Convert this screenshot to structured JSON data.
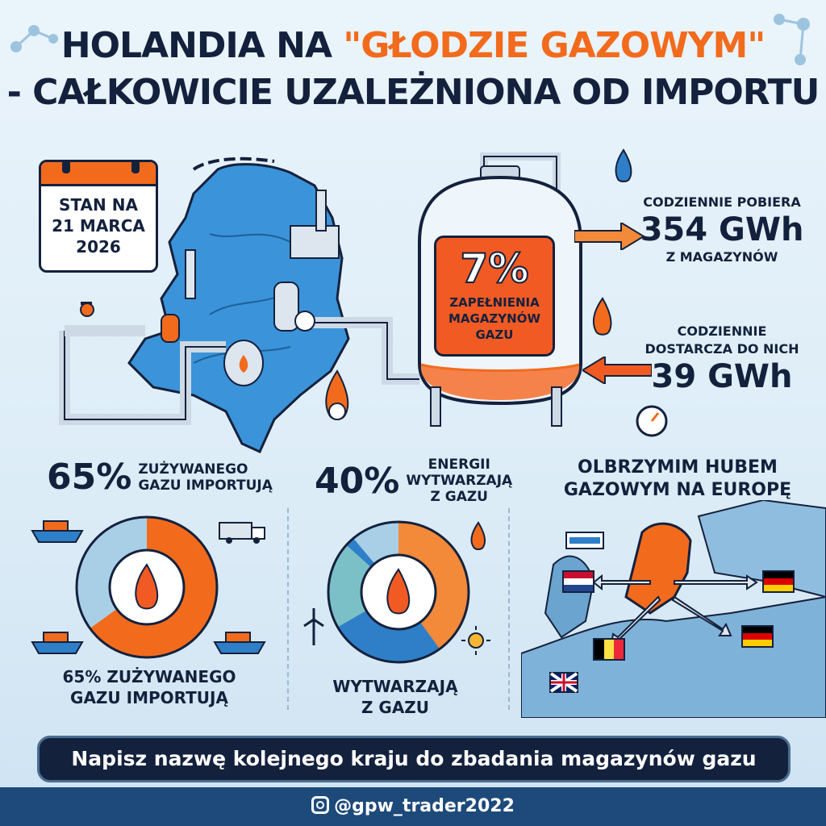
{
  "title": {
    "line1_prefix": "HOLANDIA NA ",
    "line1_accent": "\"GŁODZIE GAZOWYM\"",
    "line2": "- CAŁKOWICIE UZALEŻNIONA OD IMPORTU"
  },
  "calendar": {
    "line1": "STAN NA",
    "line2": "21 MARCA",
    "line3": "2026"
  },
  "tank": {
    "percent": "7%",
    "line1": "ZAPEŁNIENIA",
    "line2": "MAGAZYNÓW",
    "line3": "GAZU"
  },
  "outflow": {
    "label_top": "CODZIENNIE POBIERA",
    "value": "354 GWh",
    "label_bottom": "Z MAGAZYNÓW"
  },
  "inflow": {
    "label_line1": "CODZIENNIE",
    "label_line2": "DOSTARCZA DO NICH",
    "value": "39 GWh"
  },
  "import_stat": {
    "percent": "65%",
    "line1": "ZUŻYWANEGO",
    "line2": "GAZU IMPORTUJĄ"
  },
  "energy_stat": {
    "percent": "40%",
    "line1": "ENERGII",
    "line2": "WYTWARZAJĄ",
    "line3": "Z GAZU"
  },
  "hub": {
    "line1": "OLBRZYMIM HUBEM",
    "line2": "GAZOWYM NA EUROPĘ"
  },
  "import_caption": {
    "line1": "65% ZUŻYWANEGO",
    "line2": "GAZU IMPORTUJĄ"
  },
  "energy_caption": {
    "line1": "WYTWARZAJĄ",
    "line2": "Z GAZU"
  },
  "import_donut": {
    "imported_fraction": 0.65
  },
  "energy_donut": {
    "gas_fraction": 0.4
  },
  "cta": "Napisz nazwę kolejnego kraju do zbadania magazynów gazu",
  "footer": {
    "handle": "@gpw_trader2022",
    "icon": "instagram-icon"
  },
  "colors": {
    "navy": "#14213d",
    "orange": "#f26b1d",
    "red_orange": "#f25a24",
    "blue": "#2f7fc8",
    "light_blue": "#a9cfe7"
  }
}
